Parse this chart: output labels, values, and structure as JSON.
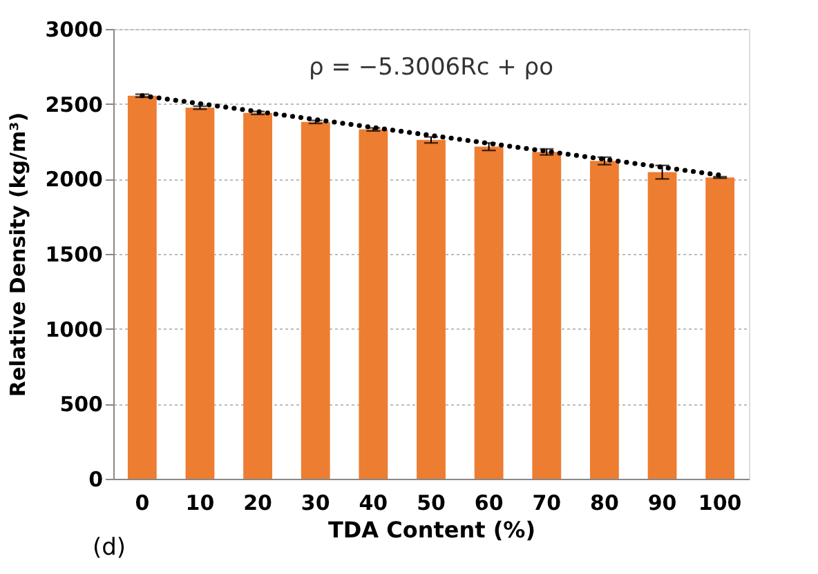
{
  "chart_data": {
    "type": "bar",
    "xlabel": "TDA Content (%)",
    "ylabel": "Relative Density (kg/m³)",
    "categories": [
      "0",
      "10",
      "20",
      "30",
      "40",
      "50",
      "60",
      "70",
      "80",
      "90",
      "100"
    ],
    "series": [
      {
        "color": "#ed7d31",
        "values": [
          2555,
          2475,
          2440,
          2380,
          2330,
          2260,
          2215,
          2180,
          2120,
          2045,
          2010
        ],
        "errors": [
          10,
          10,
          10,
          10,
          10,
          20,
          25,
          20,
          25,
          45,
          5
        ]
      },
      {
        "type": "line",
        "color": "#000000",
        "line_style": "dotted",
        "marker": "none",
        "x": [
          "0",
          "100"
        ],
        "values": [
          2555,
          2025
        ]
      }
    ],
    "ylim": [
      0,
      3000
    ],
    "yticks": [
      0,
      500,
      1000,
      1500,
      2000,
      2500,
      3000
    ],
    "grid": "y",
    "annotations": [
      "ρ = −5.3006Rc + ρo",
      "(d)"
    ]
  }
}
